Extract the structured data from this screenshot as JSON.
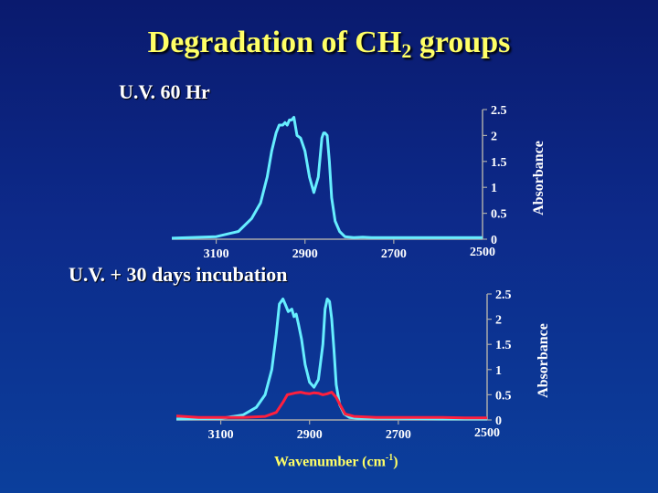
{
  "title": {
    "text": "Degradation of CH",
    "sub": "2",
    "rest": " groups"
  },
  "xaxis_label": {
    "text": "Wavenumber (cm",
    "sup": "-1",
    "close": ")"
  },
  "chart_data": [
    {
      "type": "line",
      "title": "U.V. 60 Hr",
      "ylabel": "Absorbance",
      "xlim": [
        3200,
        2500
      ],
      "ylim": [
        0,
        2.5
      ],
      "xticks": [
        3100,
        2900,
        2700
      ],
      "xtick_labels": [
        "3100",
        "2900",
        "2700"
      ],
      "right_corner_label": "2500",
      "yticks": [
        0,
        0.5,
        1,
        1.5,
        2,
        2.5
      ],
      "ytick_labels": [
        "0",
        "0.5",
        "1",
        "1.5",
        "2",
        "2.5"
      ],
      "series": [
        {
          "color": "#66eeff",
          "x": [
            3200,
            3100,
            3050,
            3020,
            3000,
            2985,
            2975,
            2965,
            2958,
            2950,
            2945,
            2940,
            2935,
            2930,
            2925,
            2918,
            2910,
            2900,
            2890,
            2880,
            2870,
            2862,
            2858,
            2855,
            2850,
            2845,
            2840,
            2832,
            2822,
            2810,
            2790,
            2770,
            2750,
            2700,
            2600,
            2500
          ],
          "y": [
            0.02,
            0.05,
            0.15,
            0.4,
            0.7,
            1.2,
            1.7,
            2.05,
            2.2,
            2.2,
            2.25,
            2.2,
            2.3,
            2.3,
            2.35,
            2.0,
            1.95,
            1.7,
            1.2,
            0.9,
            1.2,
            1.95,
            2.05,
            2.05,
            2.0,
            1.5,
            0.8,
            0.35,
            0.15,
            0.05,
            0.03,
            0.04,
            0.03,
            0.03,
            0.03,
            0.03
          ]
        }
      ]
    },
    {
      "type": "line",
      "title": "U.V. + 30 days incubation",
      "ylabel": "Absorbance",
      "xlim": [
        3200,
        2500
      ],
      "ylim": [
        0,
        2.5
      ],
      "xticks": [
        3100,
        2900,
        2700
      ],
      "xtick_labels": [
        "3100",
        "2900",
        "2700"
      ],
      "right_corner_label": "2500",
      "yticks": [
        0,
        0.5,
        1,
        1.5,
        2,
        2.5
      ],
      "ytick_labels": [
        "0",
        "0.5",
        "1",
        "1.5",
        "2",
        "2.5"
      ],
      "series": [
        {
          "color": "#66eeff",
          "x": [
            3200,
            3100,
            3050,
            3020,
            3000,
            2985,
            2975,
            2968,
            2960,
            2955,
            2948,
            2940,
            2935,
            2930,
            2925,
            2918,
            2910,
            2900,
            2890,
            2880,
            2870,
            2865,
            2860,
            2855,
            2850,
            2845,
            2840,
            2832,
            2822,
            2810,
            2790,
            2750,
            2700,
            2600,
            2500
          ],
          "y": [
            0.02,
            0.03,
            0.1,
            0.25,
            0.5,
            1.0,
            1.7,
            2.3,
            2.4,
            2.3,
            2.15,
            2.2,
            2.05,
            2.1,
            1.9,
            1.6,
            1.1,
            0.75,
            0.65,
            0.8,
            1.5,
            2.2,
            2.4,
            2.35,
            2.0,
            1.4,
            0.7,
            0.3,
            0.12,
            0.05,
            0.03,
            0.03,
            0.03,
            0.02,
            0.02
          ]
        },
        {
          "color": "#ff1f3d",
          "x": [
            3200,
            3150,
            3100,
            3050,
            3000,
            2975,
            2960,
            2950,
            2940,
            2930,
            2920,
            2910,
            2900,
            2890,
            2880,
            2870,
            2860,
            2850,
            2840,
            2830,
            2820,
            2800,
            2750,
            2700,
            2650,
            2600,
            2550,
            2500
          ],
          "y": [
            0.08,
            0.05,
            0.05,
            0.05,
            0.07,
            0.15,
            0.35,
            0.5,
            0.52,
            0.54,
            0.55,
            0.53,
            0.52,
            0.54,
            0.53,
            0.5,
            0.52,
            0.55,
            0.45,
            0.28,
            0.12,
            0.07,
            0.05,
            0.05,
            0.05,
            0.05,
            0.04,
            0.04
          ]
        }
      ]
    }
  ]
}
